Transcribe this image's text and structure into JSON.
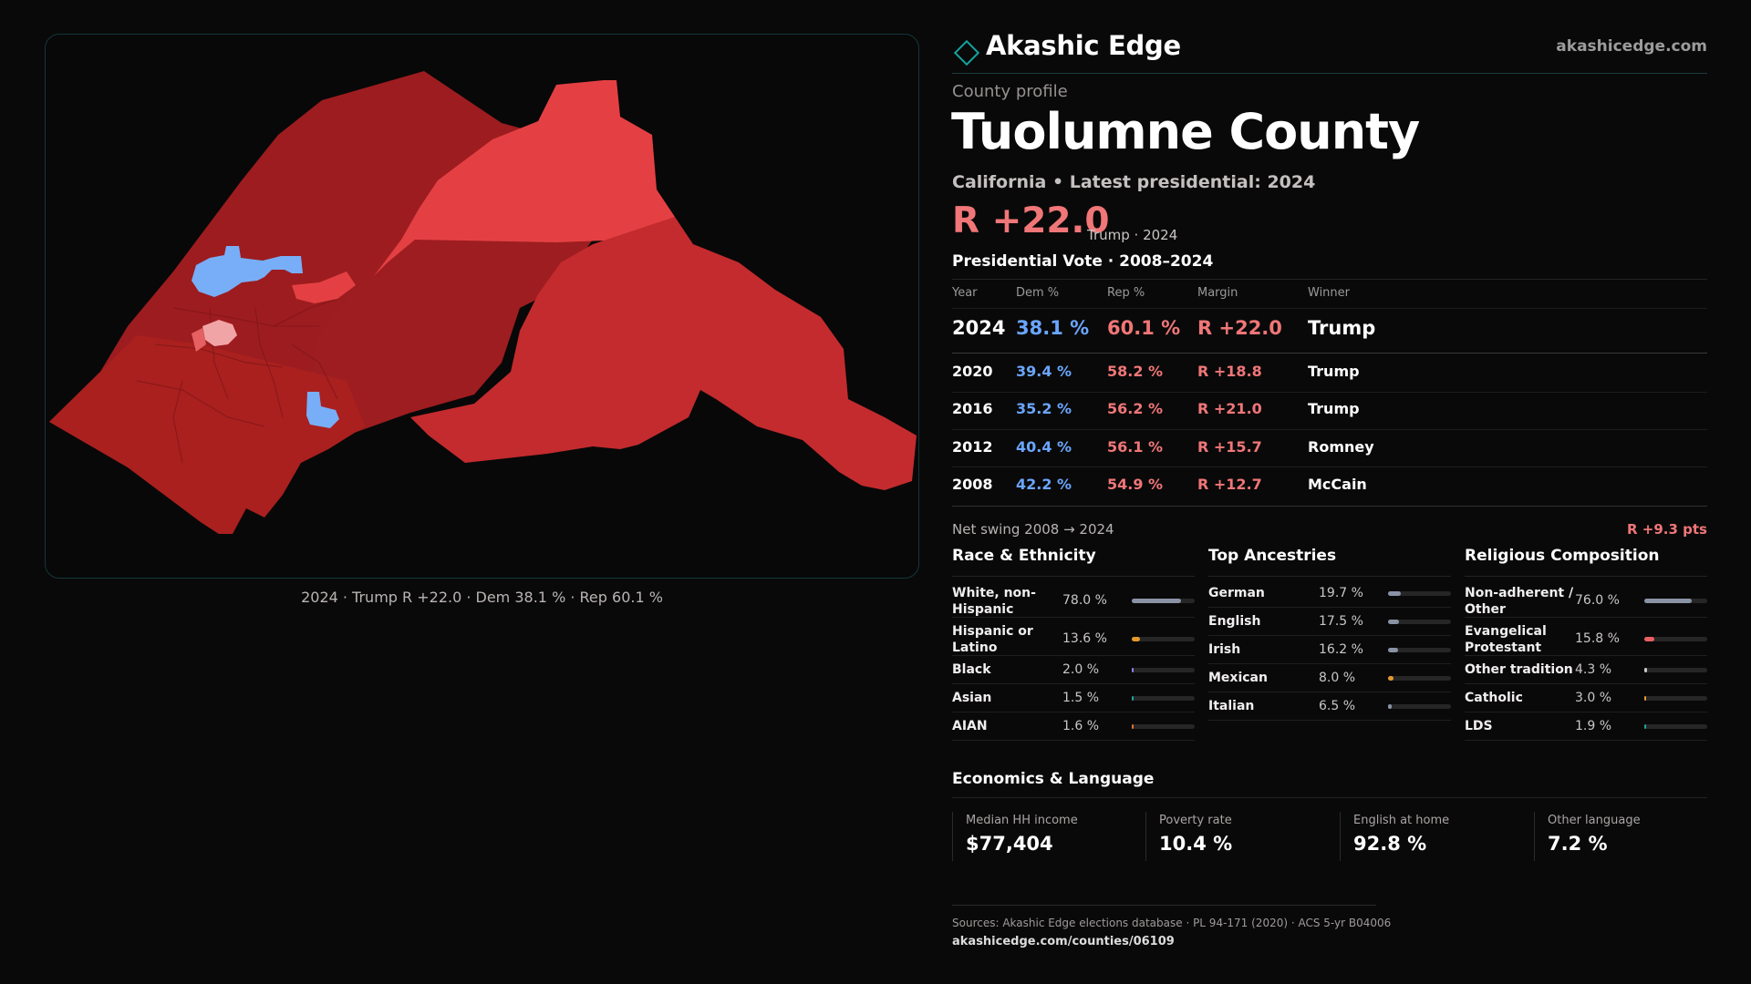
{
  "brand": {
    "name": "Akashic Edge",
    "url": "akashicedge.com",
    "accent": "#12a5a0"
  },
  "profile": {
    "kicker": "County profile",
    "county": "Tuolumne County",
    "subtitle": "California • Latest presidential: 2024",
    "margin": "R +22.0",
    "margin_note": "Trump · 2024"
  },
  "map": {
    "caption": "2024 · Trump R +22.0 · Dem 38.1 % · Rep 60.1 %",
    "colors": {
      "strong_rep": "#9d1c1f",
      "mid_rep": "#c02a2c",
      "light_rep": "#e44043",
      "dem": "#78aef7",
      "lean_rep": "#f1a4a5"
    }
  },
  "vote_table": {
    "title": "Presidential Vote · 2008–2024",
    "headers": [
      "Year",
      "Dem %",
      "Rep %",
      "Margin",
      "Winner"
    ],
    "rows": [
      {
        "year": "2024",
        "dem": "38.1 %",
        "rep": "60.1 %",
        "margin": "R +22.0",
        "winner": "Trump"
      },
      {
        "year": "2020",
        "dem": "39.4 %",
        "rep": "58.2 %",
        "margin": "R +18.8",
        "winner": "Trump"
      },
      {
        "year": "2016",
        "dem": "35.2 %",
        "rep": "56.2 %",
        "margin": "R +21.0",
        "winner": "Trump"
      },
      {
        "year": "2012",
        "dem": "40.4 %",
        "rep": "56.1 %",
        "margin": "R +15.7",
        "winner": "Romney"
      },
      {
        "year": "2008",
        "dem": "42.2 %",
        "rep": "54.9 %",
        "margin": "R +12.7",
        "winner": "McCain"
      }
    ],
    "swing_label": "Net swing 2008 → 2024",
    "swing_value": "R +9.3 pts",
    "dem_color": "#6aa6ff",
    "rep_color": "#f07678"
  },
  "race": {
    "title": "Race & Ethnicity",
    "items": [
      {
        "label": "White, non-\nHispanic",
        "value": "78.0 %",
        "share": 0.78,
        "color": "#8a93a6"
      },
      {
        "label": "Hispanic or\nLatino",
        "value": "13.6 %",
        "share": 0.136,
        "color": "#e39a2b"
      },
      {
        "label": "Black",
        "value": "2.0 %",
        "share": 0.02,
        "color": "#8f82e6"
      },
      {
        "label": "Asian",
        "value": "1.5 %",
        "share": 0.015,
        "color": "#1aa4a0"
      },
      {
        "label": "AIAN",
        "value": "1.6 %",
        "share": 0.016,
        "color": "#d8743c"
      }
    ]
  },
  "ancestry": {
    "title": "Top Ancestries",
    "items": [
      {
        "label": "German",
        "value": "19.7 %",
        "share": 0.197,
        "color": "#8a93a6"
      },
      {
        "label": "English",
        "value": "17.5 %",
        "share": 0.175,
        "color": "#8a93a6"
      },
      {
        "label": "Irish",
        "value": "16.2 %",
        "share": 0.162,
        "color": "#8a93a6"
      },
      {
        "label": "Mexican",
        "value": "8.0 %",
        "share": 0.08,
        "color": "#e39a2b"
      },
      {
        "label": "Italian",
        "value": "6.5 %",
        "share": 0.065,
        "color": "#8a93a6"
      }
    ]
  },
  "religion": {
    "title": "Religious Composition",
    "items": [
      {
        "label": "Non-adherent /\nOther",
        "value": "76.0 %",
        "share": 0.76,
        "color": "#8a93a6"
      },
      {
        "label": "Evangelical\nProtestant",
        "value": "15.8 %",
        "share": 0.158,
        "color": "#e85f63"
      },
      {
        "label": "Other tradition",
        "value": "4.3 %",
        "share": 0.043,
        "color": "#c9c9c9"
      },
      {
        "label": "Catholic",
        "value": "3.0 %",
        "share": 0.03,
        "color": "#e39a2b"
      },
      {
        "label": "LDS",
        "value": "1.9 %",
        "share": 0.019,
        "color": "#1aa4a0"
      }
    ]
  },
  "economics": {
    "title": "Economics & Language",
    "cards": [
      {
        "label": "Median HH income",
        "value": "$77,404"
      },
      {
        "label": "Poverty rate",
        "value": "10.4 %"
      },
      {
        "label": "English at home",
        "value": "92.8 %"
      },
      {
        "label": "Other language",
        "value": "7.2 %"
      }
    ]
  },
  "footer": {
    "sources": "Sources: Akashic Edge elections database · PL 94-171 (2020) · ACS 5-yr B04006",
    "url": "akashicedge.com/counties/06109"
  }
}
